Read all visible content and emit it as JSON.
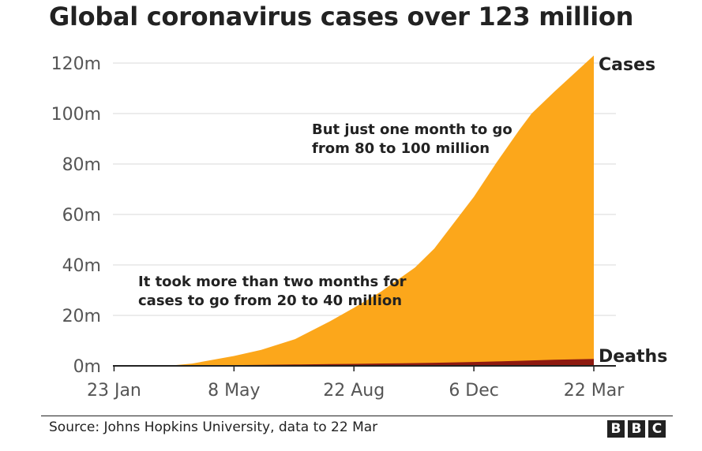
{
  "title": "Global coronavirus cases over 123 million",
  "source": "Source: Johns Hopkins University, data to 22 Mar",
  "logo": {
    "letters": [
      "B",
      "B",
      "C"
    ]
  },
  "colors": {
    "cases": "#FCA71B",
    "deaths": "#8E1A10",
    "grid": "#D9D9D9",
    "axis": "#222222"
  },
  "chart_data": {
    "type": "area",
    "title": "Global coronavirus cases over 123 million",
    "xlabel": "",
    "ylabel": "",
    "ylim": [
      0,
      120000000
    ],
    "x_ticks": [
      "23 Jan",
      "8 May",
      "22 Aug",
      "6 Dec",
      "22 Mar"
    ],
    "y_ticks": [
      "0m",
      "20m",
      "40m",
      "60m",
      "80m",
      "100m",
      "120m"
    ],
    "x": [
      "2020-01-22",
      "2020-03-15",
      "2020-04-01",
      "2020-05-08",
      "2020-06-01",
      "2020-07-01",
      "2020-08-01",
      "2020-08-22",
      "2020-09-15",
      "2020-10-15",
      "2020-11-01",
      "2020-12-06",
      "2020-12-26",
      "2021-01-15",
      "2021-01-26",
      "2021-02-15",
      "2021-03-22"
    ],
    "series": [
      {
        "name": "Cases",
        "label": "Cases",
        "values_millions": [
          0.0006,
          0.2,
          0.9,
          3.9,
          6.3,
          10.6,
          17.7,
          23.0,
          29.4,
          39.0,
          46.5,
          67.0,
          80.6,
          93.4,
          100.0,
          108.6,
          123.0
        ]
      },
      {
        "name": "Deaths",
        "label": "Deaths",
        "values_millions": [
          0.0,
          0.006,
          0.05,
          0.27,
          0.38,
          0.52,
          0.69,
          0.79,
          0.93,
          1.1,
          1.21,
          1.53,
          1.76,
          2.0,
          2.15,
          2.42,
          2.71
        ]
      }
    ],
    "annotations": [
      {
        "lines": [
          "But just one month to go",
          "from 80 to 100 million"
        ]
      },
      {
        "lines": [
          "It took more than two months for",
          "cases to go from 20 to 40 million"
        ]
      }
    ]
  }
}
